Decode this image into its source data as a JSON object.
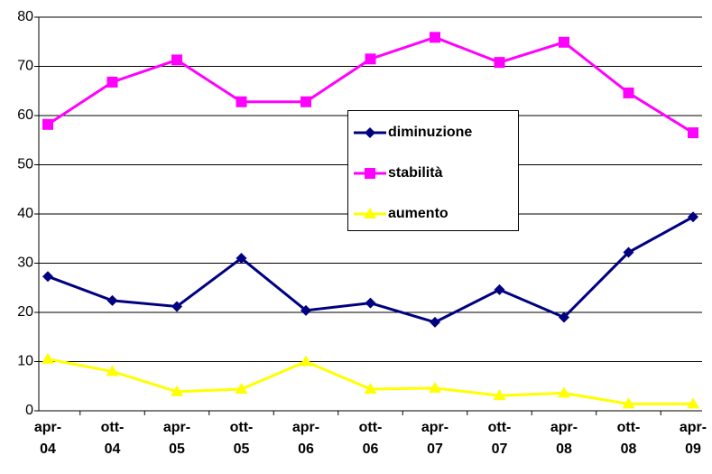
{
  "chart_data": {
    "type": "line",
    "categories": [
      "apr-04",
      "ott-04",
      "apr-05",
      "ott-05",
      "apr-06",
      "ott-06",
      "apr-07",
      "ott-07",
      "apr-08",
      "ott-08",
      "apr-09"
    ],
    "series": [
      {
        "name": "diminuzione",
        "color": "#000080",
        "marker": "diamond",
        "values": [
          27.3,
          22.4,
          21.2,
          31,
          20.4,
          21.9,
          18,
          24.6,
          19,
          32.2,
          39.4
        ]
      },
      {
        "name": "stabilità",
        "color": "#ff00ff",
        "marker": "square",
        "values": [
          58.2,
          66.8,
          71.3,
          62.8,
          62.8,
          71.5,
          75.9,
          70.8,
          74.9,
          64.6,
          56.5
        ]
      },
      {
        "name": "aumento",
        "color": "#ffff00",
        "marker": "triangle",
        "values": [
          10.5,
          8,
          3.9,
          4.4,
          10,
          4.4,
          4.6,
          3.1,
          3.6,
          1.4,
          1.4
        ]
      }
    ],
    "ylim": [
      0,
      80
    ],
    "yticks": [
      0,
      10,
      20,
      30,
      40,
      50,
      60,
      70,
      80
    ],
    "grid": true,
    "legend": "center"
  }
}
